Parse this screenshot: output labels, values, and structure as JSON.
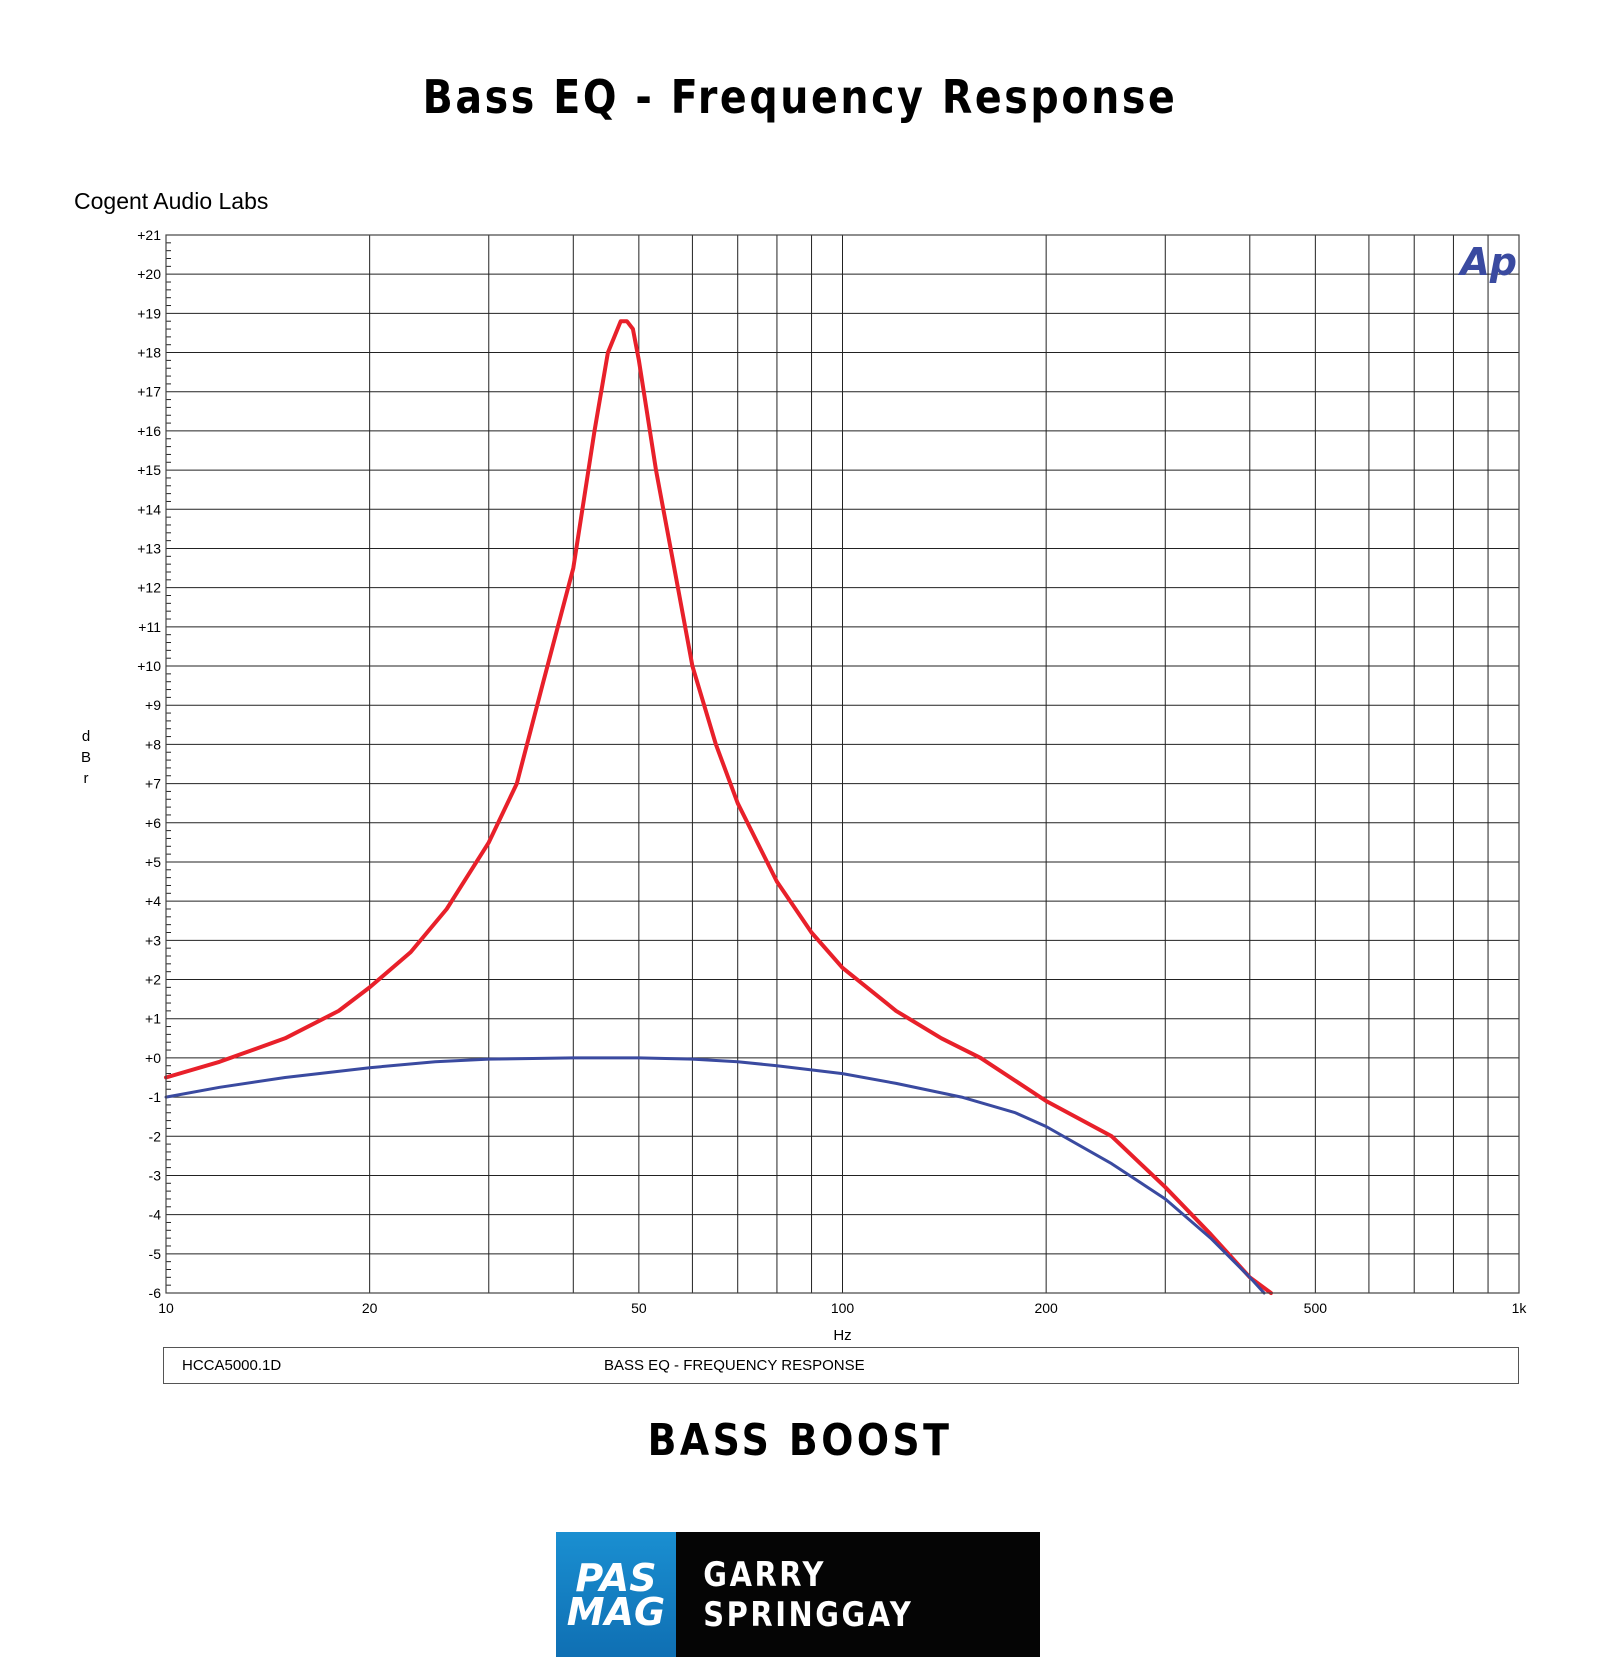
{
  "page": {
    "title": "Bass EQ - Frequency Response",
    "lab_name": "Cogent Audio Labs",
    "subtitle": "BASS BOOST",
    "footer_left": "HCCA5000.1D",
    "footer_right": "BASS EQ  -  FREQUENCY RESPONSE",
    "logo_line1": "PAS",
    "logo_line2": "MAG",
    "author": "GARRY SPRINGGAY",
    "ap_mark": "Ap"
  },
  "chart_data": {
    "type": "line",
    "title": "Bass EQ - Frequency Response",
    "xlabel": "Hz",
    "ylabel": "dBr",
    "xscale": "log",
    "xlim": [
      10,
      1000
    ],
    "ylim": [
      -6,
      21
    ],
    "grid": true,
    "x_ticks": [
      {
        "v": 10,
        "label": "10"
      },
      {
        "v": 20,
        "label": "20"
      },
      {
        "v": 50,
        "label": "50"
      },
      {
        "v": 100,
        "label": "100"
      },
      {
        "v": 200,
        "label": "200"
      },
      {
        "v": 500,
        "label": "500"
      },
      {
        "v": 1000,
        "label": "1k"
      }
    ],
    "x_gridlines": [
      10,
      20,
      30,
      40,
      50,
      60,
      70,
      80,
      90,
      100,
      200,
      300,
      400,
      500,
      600,
      700,
      800,
      900,
      1000
    ],
    "y_ticks": [
      {
        "v": 21,
        "label": "+21"
      },
      {
        "v": 20,
        "label": "+20"
      },
      {
        "v": 19,
        "label": "+19"
      },
      {
        "v": 18,
        "label": "+18"
      },
      {
        "v": 17,
        "label": "+17"
      },
      {
        "v": 16,
        "label": "+16"
      },
      {
        "v": 15,
        "label": "+15"
      },
      {
        "v": 14,
        "label": "+14"
      },
      {
        "v": 13,
        "label": "+13"
      },
      {
        "v": 12,
        "label": "+12"
      },
      {
        "v": 11,
        "label": "+11"
      },
      {
        "v": 10,
        "label": "+10"
      },
      {
        "v": 9,
        "label": "+9"
      },
      {
        "v": 8,
        "label": "+8"
      },
      {
        "v": 7,
        "label": "+7"
      },
      {
        "v": 6,
        "label": "+6"
      },
      {
        "v": 5,
        "label": "+5"
      },
      {
        "v": 4,
        "label": "+4"
      },
      {
        "v": 3,
        "label": "+3"
      },
      {
        "v": 2,
        "label": "+2"
      },
      {
        "v": 1,
        "label": "+1"
      },
      {
        "v": 0,
        "label": "+0"
      },
      {
        "v": -1,
        "label": "-1"
      },
      {
        "v": -2,
        "label": "-2"
      },
      {
        "v": -3,
        "label": "-3"
      },
      {
        "v": -4,
        "label": "-4"
      },
      {
        "v": -5,
        "label": "-5"
      },
      {
        "v": -6,
        "label": "-6"
      }
    ],
    "series": [
      {
        "color": "#e8202a",
        "points": [
          [
            10,
            -0.5
          ],
          [
            12,
            -0.1
          ],
          [
            15,
            0.5
          ],
          [
            18,
            1.2
          ],
          [
            20,
            1.8
          ],
          [
            23,
            2.7
          ],
          [
            26,
            3.8
          ],
          [
            30,
            5.5
          ],
          [
            33,
            7.0
          ],
          [
            36,
            9.5
          ],
          [
            40,
            12.5
          ],
          [
            43,
            16.0
          ],
          [
            45,
            18.0
          ],
          [
            47,
            18.8
          ],
          [
            48,
            18.8
          ],
          [
            49,
            18.6
          ],
          [
            50,
            17.8
          ],
          [
            53,
            15.0
          ],
          [
            56,
            12.8
          ],
          [
            60,
            10.0
          ],
          [
            65,
            8.0
          ],
          [
            70,
            6.5
          ],
          [
            80,
            4.5
          ],
          [
            90,
            3.2
          ],
          [
            100,
            2.3
          ],
          [
            120,
            1.2
          ],
          [
            140,
            0.5
          ],
          [
            160,
            0.0
          ],
          [
            200,
            -1.1
          ],
          [
            250,
            -2.0
          ],
          [
            300,
            -3.3
          ],
          [
            350,
            -4.5
          ],
          [
            400,
            -5.6
          ],
          [
            430,
            -6.0
          ]
        ]
      },
      {
        "color": "#3a4aa0",
        "points": [
          [
            10,
            -1.0
          ],
          [
            12,
            -0.75
          ],
          [
            15,
            -0.5
          ],
          [
            20,
            -0.25
          ],
          [
            25,
            -0.1
          ],
          [
            30,
            -0.03
          ],
          [
            40,
            0.0
          ],
          [
            50,
            0.0
          ],
          [
            60,
            -0.03
          ],
          [
            70,
            -0.1
          ],
          [
            80,
            -0.2
          ],
          [
            100,
            -0.4
          ],
          [
            120,
            -0.65
          ],
          [
            150,
            -1.0
          ],
          [
            180,
            -1.4
          ],
          [
            200,
            -1.75
          ],
          [
            250,
            -2.7
          ],
          [
            300,
            -3.6
          ],
          [
            350,
            -4.6
          ],
          [
            400,
            -5.6
          ],
          [
            420,
            -6.0
          ]
        ]
      }
    ]
  }
}
